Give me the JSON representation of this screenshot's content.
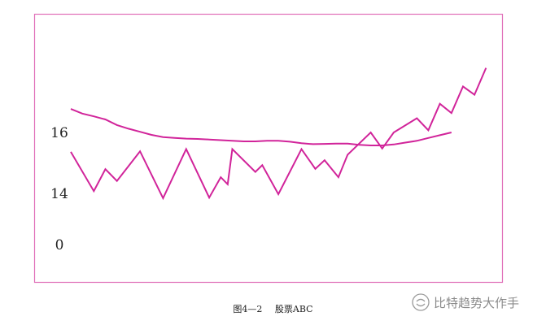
{
  "chart_data": {
    "type": "line",
    "title": "",
    "xlabel": "",
    "ylabel": "",
    "y_tick_labels": [
      "16",
      "14",
      "0"
    ],
    "grid": false,
    "colors": {
      "frame": "#e06fb8",
      "line": "#d1249a"
    },
    "series": [
      {
        "points": [
          [
            0,
            16.76
          ],
          [
            0.5,
            16.61
          ],
          [
            1,
            16.52
          ],
          [
            1.5,
            16.42
          ],
          [
            2,
            16.24
          ],
          [
            2.5,
            16.12
          ],
          [
            3,
            16.02
          ],
          [
            3.5,
            15.92
          ],
          [
            4,
            15.85
          ],
          [
            4.5,
            15.82
          ],
          [
            5,
            15.8
          ],
          [
            5.5,
            15.79
          ],
          [
            6,
            15.77
          ],
          [
            6.5,
            15.75
          ],
          [
            7,
            15.73
          ],
          [
            7.5,
            15.71
          ],
          [
            8,
            15.71
          ],
          [
            8.5,
            15.73
          ],
          [
            9,
            15.73
          ],
          [
            9.5,
            15.7
          ],
          [
            10,
            15.65
          ],
          [
            10.5,
            15.62
          ],
          [
            11,
            15.63
          ],
          [
            11.5,
            15.64
          ],
          [
            12,
            15.64
          ],
          [
            12.5,
            15.6
          ],
          [
            13,
            15.58
          ],
          [
            13.5,
            15.58
          ],
          [
            14,
            15.61
          ],
          [
            14.5,
            15.67
          ],
          [
            15,
            15.73
          ],
          [
            15.5,
            15.82
          ],
          [
            16,
            15.91
          ],
          [
            16.5,
            16.0
          ]
        ]
      },
      {
        "points": [
          [
            0,
            15.37
          ],
          [
            1,
            14.1
          ],
          [
            1.5,
            14.81
          ],
          [
            2,
            14.43
          ],
          [
            3,
            15.39
          ],
          [
            4,
            13.87
          ],
          [
            5,
            15.46
          ],
          [
            6,
            13.89
          ],
          [
            6.5,
            14.55
          ],
          [
            6.8,
            14.32
          ],
          [
            7,
            15.46
          ],
          [
            8,
            14.72
          ],
          [
            8.3,
            14.94
          ],
          [
            9,
            14.0
          ],
          [
            10,
            15.46
          ],
          [
            10.6,
            14.82
          ],
          [
            11,
            15.1
          ],
          [
            11.6,
            14.55
          ],
          [
            12,
            15.28
          ],
          [
            13,
            16.0
          ],
          [
            13.5,
            15.48
          ],
          [
            14,
            16.0
          ],
          [
            15,
            16.46
          ],
          [
            15.5,
            16.07
          ],
          [
            16,
            16.93
          ],
          [
            16.5,
            16.63
          ],
          [
            17,
            17.49
          ],
          [
            17.5,
            17.22
          ],
          [
            18,
            18.09
          ]
        ]
      }
    ]
  },
  "caption": {
    "figure_number": "图4—2",
    "title": "股票ABC"
  },
  "watermark": {
    "icon": "wechat-logo-icon",
    "text": "比特趋势大作手"
  }
}
